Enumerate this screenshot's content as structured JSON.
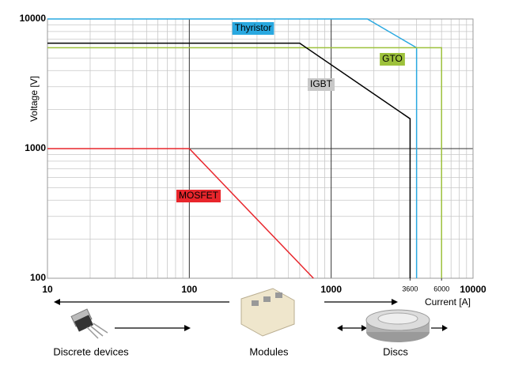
{
  "chart_data": {
    "type": "line",
    "xlabel": "Current [A]",
    "ylabel": "Voltage [V]",
    "xscale": "log",
    "yscale": "log",
    "grid": true,
    "xlim": [
      10,
      10000
    ],
    "ylim": [
      100,
      10000
    ],
    "xticks": [
      10,
      100,
      1000,
      3600,
      6000,
      10000
    ],
    "yticks": [
      100,
      1000,
      10000
    ],
    "series": [
      {
        "name": "Thyristor",
        "color": "#29a8e0",
        "box_color": "#29a8e0",
        "x": [
          10,
          1800,
          4000,
          4000
        ],
        "values": [
          10000,
          10000,
          6000,
          100
        ]
      },
      {
        "name": "GTO",
        "color": "#9dc13b",
        "box_color": "#9dc13b",
        "x": [
          10,
          6000,
          6000
        ],
        "values": [
          6000,
          6000,
          100
        ]
      },
      {
        "name": "IGBT",
        "color": "#000000",
        "box_color": "#c8c8c8",
        "x": [
          10,
          600,
          3600,
          3600
        ],
        "values": [
          6500,
          6500,
          1700,
          100
        ]
      },
      {
        "name": "MOSFET",
        "color": "#e8262c",
        "box_color": "#e8262c",
        "x": [
          10,
          100,
          750
        ],
        "values": [
          1000,
          1000,
          100
        ]
      }
    ],
    "annotations": [
      "Discrete devices",
      "Modules",
      "Discs"
    ]
  }
}
